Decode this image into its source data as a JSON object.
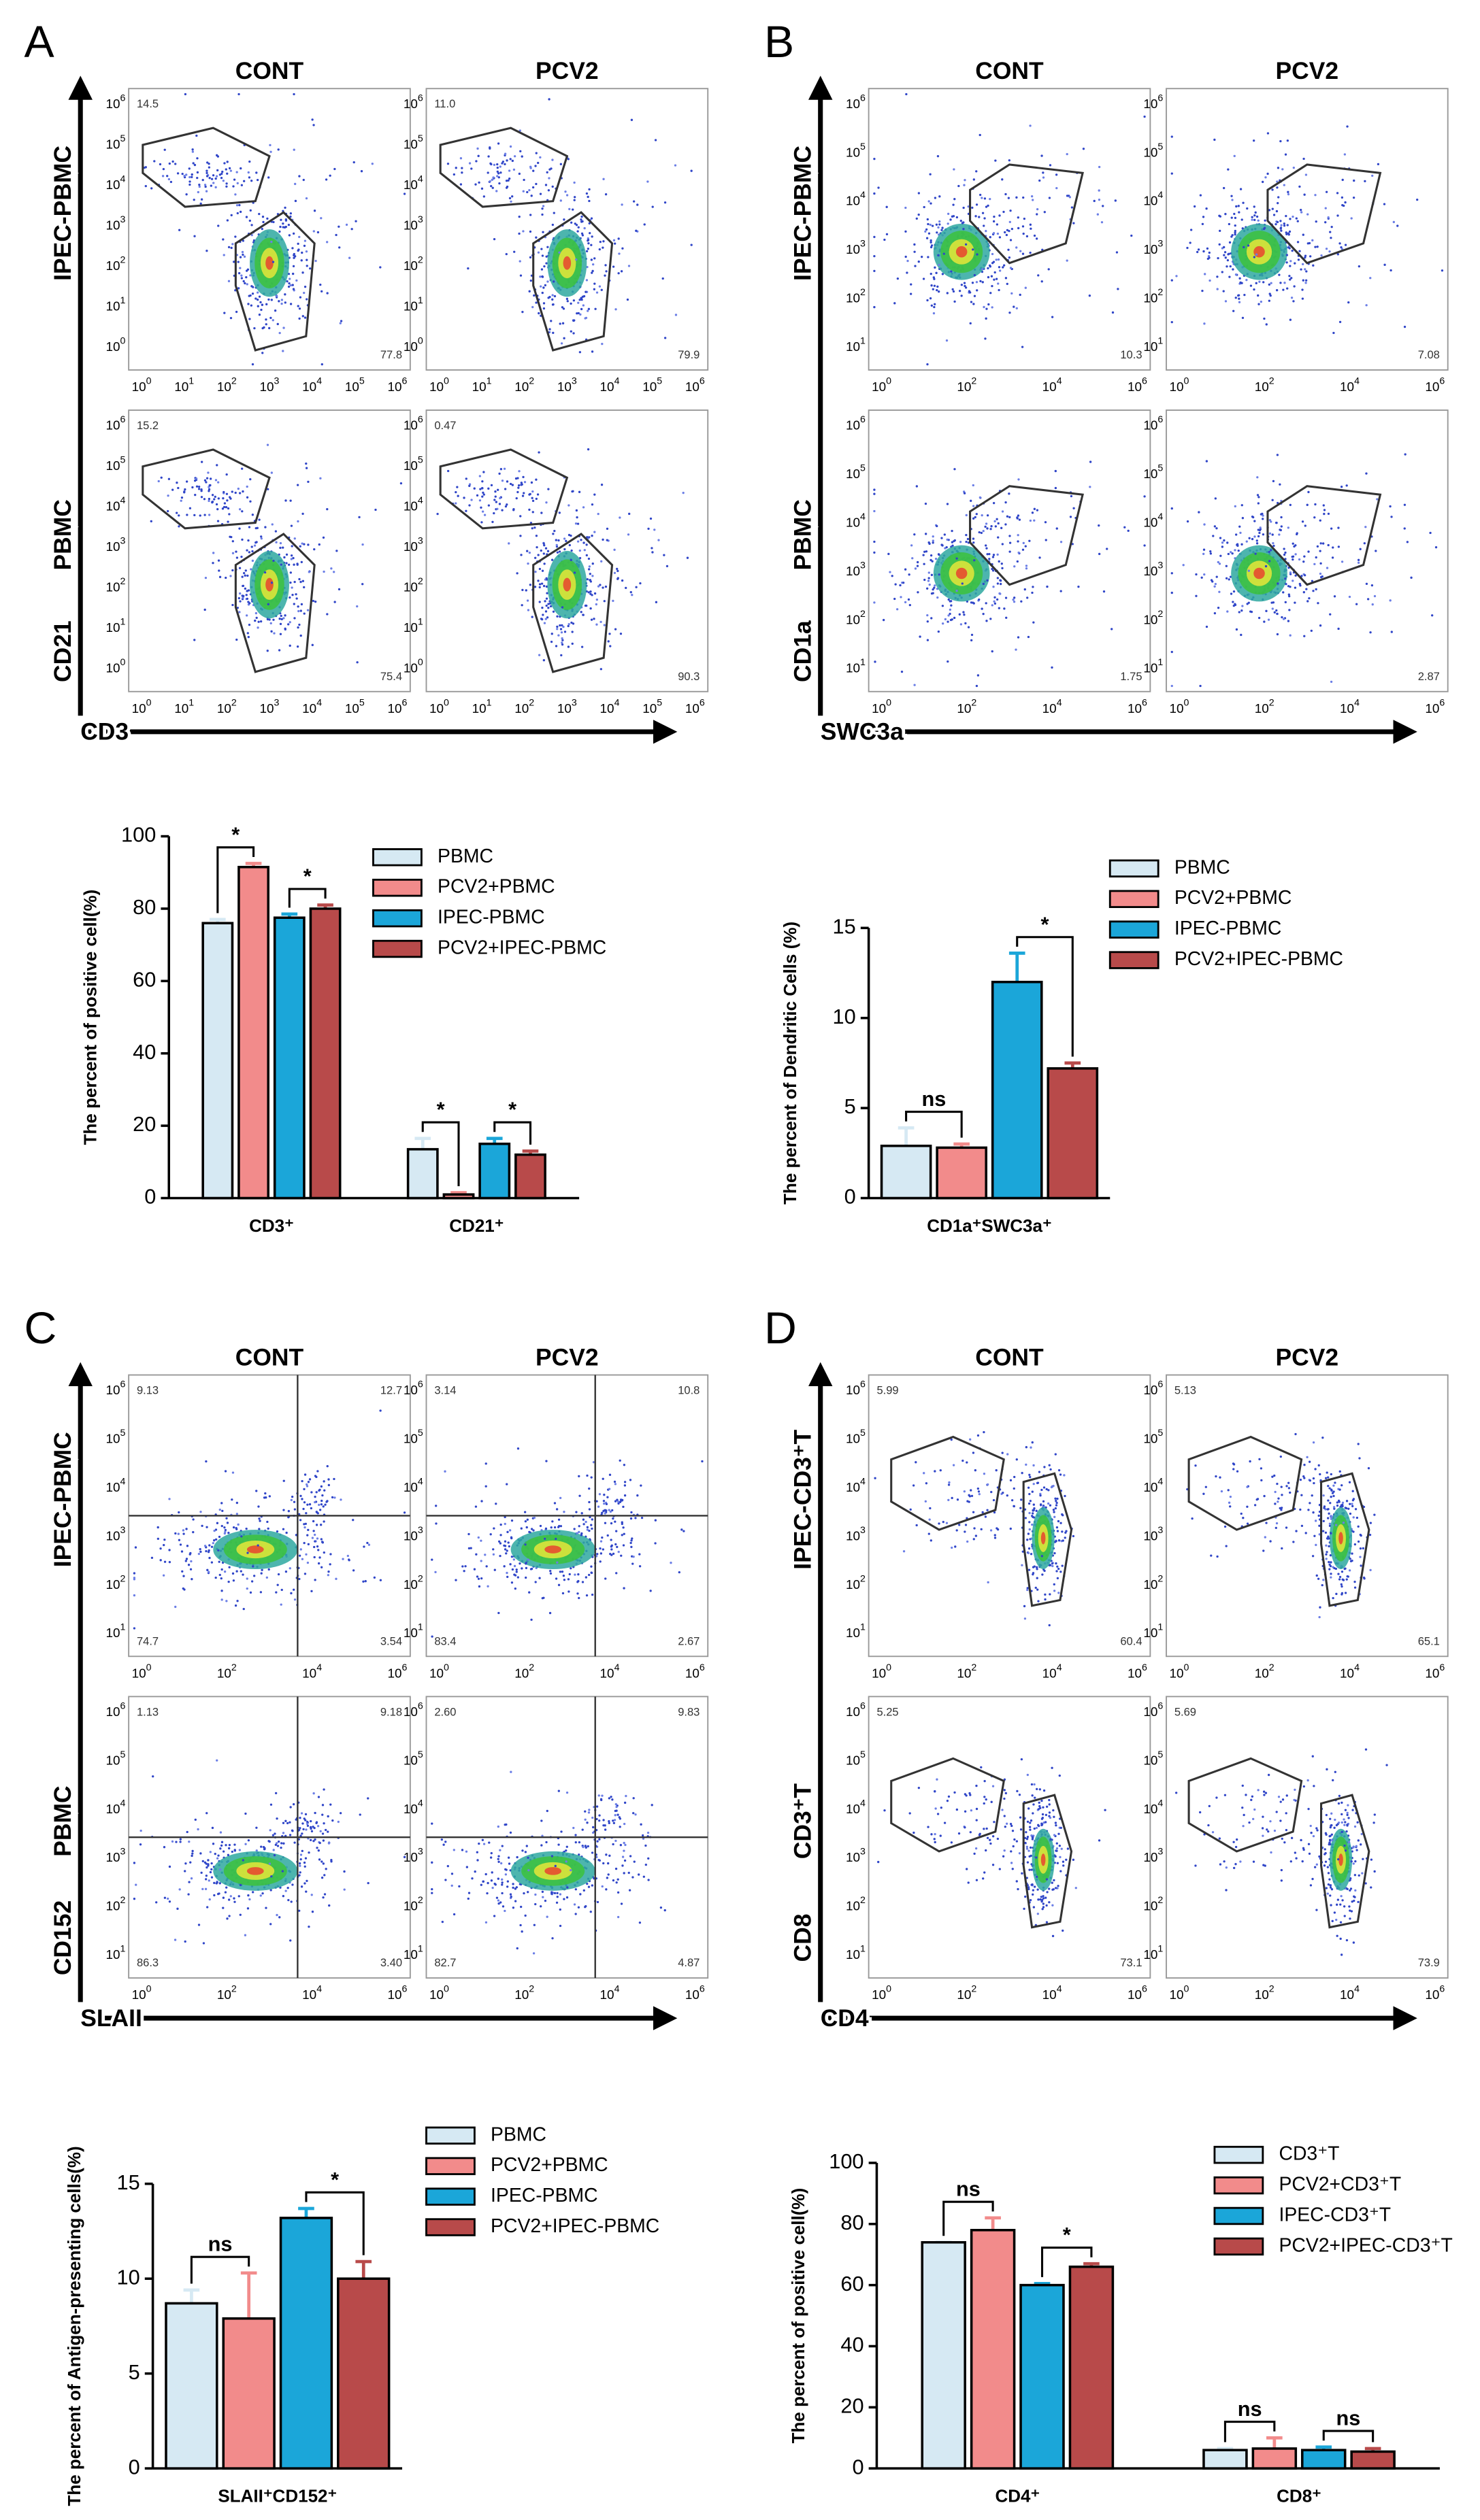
{
  "panels": [
    {
      "label": "A",
      "columns": [
        "CONT",
        "PCV2"
      ],
      "rows": [
        "IPEC-PBMC",
        "PBMC"
      ],
      "y_axis": "CD21",
      "x_axis": "CD3",
      "tick_base": "10",
      "x_ticks": [
        "0",
        "1",
        "2",
        "3",
        "4",
        "5",
        "6"
      ],
      "y_ticks": [
        "0",
        "1",
        "2",
        "3",
        "4",
        "5",
        "6"
      ],
      "plots": [
        [
          {
            "top_left": "14.5",
            "bottom_right": "77.8"
          },
          {
            "top_left": "11.0",
            "bottom_right": "79.9"
          }
        ],
        [
          {
            "top_left": "15.2",
            "bottom_right": "75.4"
          },
          {
            "top_left": "0.47",
            "bottom_right": "90.3"
          }
        ]
      ],
      "chart": {
        "type": "bar",
        "ylabel": "The percent of positive cell(%)",
        "categories": [
          "CD3⁺",
          "CD21⁺"
        ],
        "series": [
          {
            "name": "PBMC",
            "color": "#d6e9f3",
            "values": [
              76,
              13.5
            ],
            "errors": [
              1,
              3
            ]
          },
          {
            "name": "PCV2+PBMC",
            "color": "#f28b8b",
            "values": [
              91.5,
              1
            ],
            "errors": [
              1,
              0.5
            ]
          },
          {
            "name": "IPEC-PBMC",
            "color": "#1ba6d9",
            "values": [
              77.5,
              15
            ],
            "errors": [
              1,
              1.5
            ]
          },
          {
            "name": "PCV2+IPEC-PBMC",
            "color": "#b84a4a",
            "values": [
              80,
              12
            ],
            "errors": [
              1,
              1
            ]
          }
        ],
        "ylim": [
          0,
          100
        ],
        "yticks": [
          0,
          20,
          40,
          60,
          80,
          100
        ],
        "significance": [
          [
            "*",
            "*"
          ],
          [
            "*",
            "*"
          ]
        ]
      }
    },
    {
      "label": "B",
      "columns": [
        "CONT",
        "PCV2"
      ],
      "rows": [
        "IPEC-PBMC",
        "PBMC"
      ],
      "y_axis": "CD1a",
      "x_axis": "SWC3a",
      "tick_base": "10",
      "x_ticks": [
        "0",
        "2",
        "4",
        "6"
      ],
      "y_ticks": [
        "1",
        "2",
        "3",
        "4",
        "5",
        "6"
      ],
      "plots": [
        [
          {
            "bottom_right": "10.3"
          },
          {
            "bottom_right": "7.08"
          }
        ],
        [
          {
            "bottom_right": "1.75"
          },
          {
            "bottom_right": "2.87"
          }
        ]
      ],
      "chart": {
        "type": "bar",
        "ylabel": "The percent of Dendritic Cells (%)",
        "categories": [
          "CD1a⁺SWC3a⁺"
        ],
        "series": [
          {
            "name": "PBMC",
            "color": "#d6e9f3",
            "values": [
              2.9
            ],
            "errors": [
              1
            ]
          },
          {
            "name": "PCV2+PBMC",
            "color": "#f28b8b",
            "values": [
              2.8
            ],
            "errors": [
              0.2
            ]
          },
          {
            "name": "IPEC-PBMC",
            "color": "#1ba6d9",
            "values": [
              12
            ],
            "errors": [
              1.6
            ]
          },
          {
            "name": "PCV2+IPEC-PBMC",
            "color": "#b84a4a",
            "values": [
              7.2
            ],
            "errors": [
              0.3
            ]
          }
        ],
        "ylim": [
          0,
          15
        ],
        "yticks": [
          0,
          5,
          10,
          15
        ],
        "significance": [
          [
            "ns",
            "*"
          ]
        ]
      }
    },
    {
      "label": "C",
      "columns": [
        "CONT",
        "PCV2"
      ],
      "rows": [
        "IPEC-PBMC",
        "PBMC"
      ],
      "y_axis": "CD152",
      "x_axis": "SLAII",
      "tick_base": "10",
      "x_ticks": [
        "0",
        "2",
        "4",
        "6"
      ],
      "y_ticks": [
        "1",
        "2",
        "3",
        "4",
        "5",
        "6"
      ],
      "plots": [
        [
          {
            "top_left": "9.13",
            "top_right": "12.7",
            "bottom_left": "74.7",
            "bottom_right": "3.54"
          },
          {
            "top_left": "3.14",
            "top_right": "10.8",
            "bottom_left": "83.4",
            "bottom_right": "2.67"
          }
        ],
        [
          {
            "top_left": "1.13",
            "top_right": "9.18",
            "bottom_left": "86.3",
            "bottom_right": "3.40"
          },
          {
            "top_left": "2.60",
            "top_right": "9.83",
            "bottom_left": "82.7",
            "bottom_right": "4.87"
          }
        ]
      ],
      "chart": {
        "type": "bar",
        "ylabel": "The percent of Antigen-presenting cells(%)",
        "categories": [
          "SLAII⁺CD152⁺"
        ],
        "series": [
          {
            "name": "PBMC",
            "color": "#d6e9f3",
            "values": [
              8.7
            ],
            "errors": [
              0.7
            ]
          },
          {
            "name": "PCV2+PBMC",
            "color": "#f28b8b",
            "values": [
              7.9
            ],
            "errors": [
              2.4
            ]
          },
          {
            "name": "IPEC-PBMC",
            "color": "#1ba6d9",
            "values": [
              13.2
            ],
            "errors": [
              0.5
            ]
          },
          {
            "name": "PCV2+IPEC-PBMC",
            "color": "#b84a4a",
            "values": [
              10
            ],
            "errors": [
              0.9
            ]
          }
        ],
        "ylim": [
          0,
          15
        ],
        "yticks": [
          0,
          5,
          10,
          15
        ],
        "significance": [
          [
            "ns",
            "*"
          ]
        ]
      }
    },
    {
      "label": "D",
      "columns": [
        "CONT",
        "PCV2"
      ],
      "rows": [
        "IPEC-CD3⁺T",
        "CD3⁺T"
      ],
      "y_axis": "CD8",
      "x_axis": "CD4",
      "tick_base": "10",
      "x_ticks": [
        "0",
        "2",
        "4",
        "6"
      ],
      "y_ticks": [
        "1",
        "2",
        "3",
        "4",
        "5",
        "6"
      ],
      "plots": [
        [
          {
            "top_left": "5.99",
            "bottom_right": "60.4"
          },
          {
            "top_left": "5.13",
            "bottom_right": "65.1"
          }
        ],
        [
          {
            "top_left": "5.25",
            "bottom_right": "73.1"
          },
          {
            "top_left": "5.69",
            "bottom_right": "73.9"
          }
        ]
      ],
      "chart": {
        "type": "bar",
        "ylabel": "The percent of positive cell(%)",
        "categories": [
          "CD4⁺",
          "CD8⁺"
        ],
        "series": [
          {
            "name": "CD3⁺T",
            "color": "#d6e9f3",
            "values": [
              74,
              6
            ],
            "errors": [
              0,
              0.5
            ]
          },
          {
            "name": "PCV2+CD3⁺T",
            "color": "#f28b8b",
            "values": [
              78,
              6.5
            ],
            "errors": [
              4,
              3.5
            ]
          },
          {
            "name": "IPEC-CD3⁺T",
            "color": "#1ba6d9",
            "values": [
              60,
              6
            ],
            "errors": [
              0.5,
              1
            ]
          },
          {
            "name": "PCV2+IPEC-CD3⁺T",
            "color": "#b84a4a",
            "values": [
              66,
              5.5
            ],
            "errors": [
              1,
              1
            ]
          }
        ],
        "ylim": [
          0,
          100
        ],
        "yticks": [
          0,
          20,
          40,
          60,
          80,
          100
        ],
        "significance": [
          [
            "ns",
            "*"
          ],
          [
            "ns",
            "ns"
          ]
        ]
      }
    }
  ]
}
